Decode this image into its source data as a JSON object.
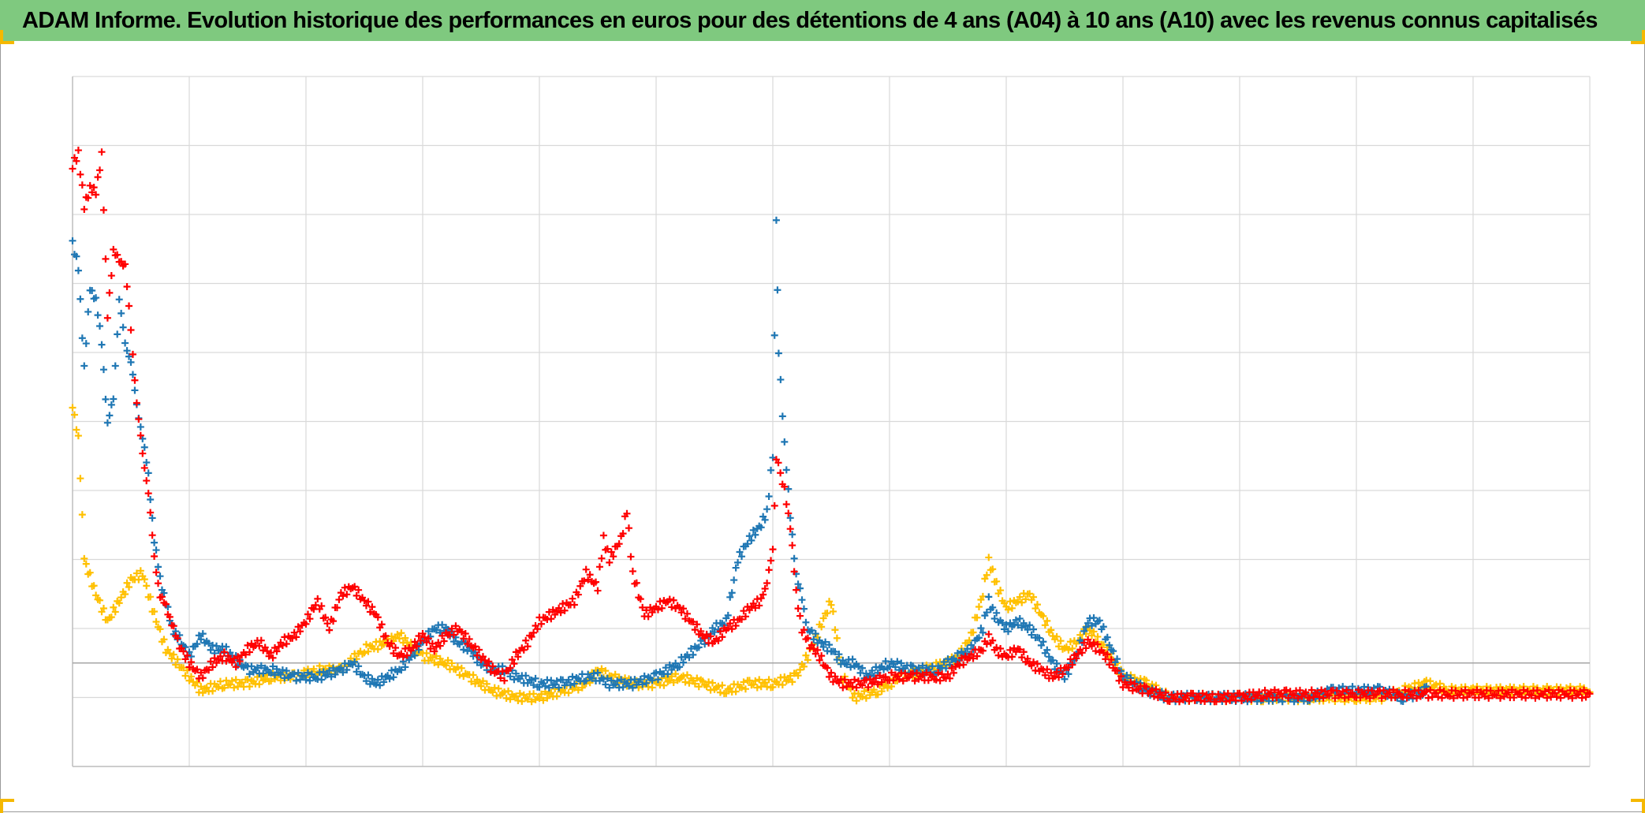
{
  "title": "ADAM Informe. Evolution historique des performances en euros pour des détentions de 4 ans (A04) à 10 ans (A10) avec les revenus connus capitalisés",
  "colors": {
    "title_background": "#7fc97f",
    "corner_marks": "#f5b800",
    "gridline": "#d9d9d9",
    "axis": "#bfbfbf"
  },
  "chart_data": {
    "type": "scatter",
    "marker": "plus",
    "grid": true,
    "legend": "none",
    "xlim": [
      0,
      13
    ],
    "ylim": [
      -1.5,
      8.5
    ],
    "x_gridlines": [
      0,
      1,
      2,
      3,
      4,
      5,
      6,
      7,
      8,
      9,
      10,
      11,
      12,
      13
    ],
    "y_gridlines": [
      -1.5,
      -0.5,
      0.5,
      1.5,
      2.5,
      3.5,
      4.5,
      5.5,
      6.5,
      7.5,
      8.5
    ],
    "baseline_y": 0,
    "series": [
      {
        "color": "#ffc000",
        "points": [
          [
            0,
            3.7
          ],
          [
            0.05,
            3.3
          ],
          [
            0.1,
            1.5
          ],
          [
            0.2,
            1.0
          ],
          [
            0.3,
            0.6
          ],
          [
            0.4,
            0.9
          ],
          [
            0.5,
            1.2
          ],
          [
            0.6,
            1.3
          ],
          [
            0.7,
            0.7
          ],
          [
            0.8,
            0.2
          ],
          [
            0.9,
            0.0
          ],
          [
            1.0,
            -0.2
          ],
          [
            1.1,
            -0.4
          ],
          [
            1.3,
            -0.3
          ],
          [
            1.5,
            -0.3
          ],
          [
            1.7,
            -0.2
          ],
          [
            1.9,
            -0.2
          ],
          [
            2.1,
            -0.1
          ],
          [
            2.3,
            -0.1
          ],
          [
            2.5,
            0.2
          ],
          [
            2.7,
            0.3
          ],
          [
            2.8,
            0.4
          ],
          [
            3.0,
            0.1
          ],
          [
            3.2,
            0.0
          ],
          [
            3.4,
            -0.2
          ],
          [
            3.6,
            -0.4
          ],
          [
            3.8,
            -0.5
          ],
          [
            4.0,
            -0.5
          ],
          [
            4.2,
            -0.4
          ],
          [
            4.4,
            -0.3
          ],
          [
            4.5,
            -0.1
          ],
          [
            4.6,
            -0.2
          ],
          [
            4.8,
            -0.3
          ],
          [
            5.0,
            -0.3
          ],
          [
            5.2,
            -0.2
          ],
          [
            5.4,
            -0.3
          ],
          [
            5.6,
            -0.4
          ],
          [
            5.8,
            -0.3
          ],
          [
            6.0,
            -0.3
          ],
          [
            6.2,
            -0.2
          ],
          [
            6.3,
            0.1
          ],
          [
            6.4,
            0.5
          ],
          [
            6.5,
            0.9
          ],
          [
            6.55,
            0.3
          ],
          [
            6.6,
            -0.2
          ],
          [
            6.7,
            -0.5
          ],
          [
            6.9,
            -0.4
          ],
          [
            7.1,
            -0.2
          ],
          [
            7.3,
            -0.1
          ],
          [
            7.5,
            0.0
          ],
          [
            7.6,
            0.1
          ],
          [
            7.7,
            0.4
          ],
          [
            7.8,
            1.0
          ],
          [
            7.85,
            1.5
          ],
          [
            7.9,
            1.2
          ],
          [
            8.0,
            0.8
          ],
          [
            8.1,
            0.9
          ],
          [
            8.2,
            1.0
          ],
          [
            8.3,
            0.7
          ],
          [
            8.4,
            0.4
          ],
          [
            8.5,
            0.2
          ],
          [
            8.6,
            0.3
          ],
          [
            8.7,
            0.5
          ],
          [
            8.8,
            0.3
          ],
          [
            8.9,
            0.1
          ],
          [
            9.0,
            -0.2
          ],
          [
            9.2,
            -0.3
          ],
          [
            9.4,
            -0.5
          ],
          [
            9.6,
            -0.5
          ],
          [
            9.8,
            -0.5
          ],
          [
            10.0,
            -0.5
          ],
          [
            10.2,
            -0.5
          ],
          [
            10.4,
            -0.5
          ],
          [
            10.6,
            -0.5
          ],
          [
            10.8,
            -0.5
          ],
          [
            11.0,
            -0.5
          ],
          [
            11.2,
            -0.5
          ],
          [
            11.4,
            -0.4
          ],
          [
            11.6,
            -0.3
          ],
          [
            11.8,
            -0.4
          ],
          [
            12.0,
            -0.4
          ],
          [
            12.3,
            -0.4
          ],
          [
            12.6,
            -0.4
          ],
          [
            13.0,
            -0.4
          ]
        ]
      },
      {
        "color": "#1f77b4",
        "points": [
          [
            0,
            6.1
          ],
          [
            0.05,
            5.7
          ],
          [
            0.1,
            4.3
          ],
          [
            0.15,
            5.4
          ],
          [
            0.2,
            5.3
          ],
          [
            0.25,
            4.6
          ],
          [
            0.3,
            3.5
          ],
          [
            0.35,
            3.8
          ],
          [
            0.4,
            5.3
          ],
          [
            0.45,
            4.6
          ],
          [
            0.5,
            4.4
          ],
          [
            0.55,
            3.7
          ],
          [
            0.6,
            3.3
          ],
          [
            0.65,
            2.7
          ],
          [
            0.7,
            1.8
          ],
          [
            0.75,
            1.2
          ],
          [
            0.8,
            0.9
          ],
          [
            0.85,
            0.5
          ],
          [
            0.9,
            0.4
          ],
          [
            1.0,
            0.1
          ],
          [
            1.1,
            0.4
          ],
          [
            1.2,
            0.2
          ],
          [
            1.3,
            0.2
          ],
          [
            1.5,
            -0.1
          ],
          [
            1.7,
            -0.1
          ],
          [
            1.9,
            -0.2
          ],
          [
            2.1,
            -0.2
          ],
          [
            2.3,
            -0.1
          ],
          [
            2.4,
            0.0
          ],
          [
            2.5,
            -0.2
          ],
          [
            2.6,
            -0.3
          ],
          [
            2.8,
            -0.1
          ],
          [
            3.0,
            0.3
          ],
          [
            3.1,
            0.5
          ],
          [
            3.2,
            0.5
          ],
          [
            3.3,
            0.3
          ],
          [
            3.4,
            0.2
          ],
          [
            3.5,
            0.0
          ],
          [
            3.6,
            -0.1
          ],
          [
            3.7,
            -0.1
          ],
          [
            3.8,
            -0.2
          ],
          [
            4.0,
            -0.3
          ],
          [
            4.2,
            -0.3
          ],
          [
            4.4,
            -0.2
          ],
          [
            4.5,
            -0.2
          ],
          [
            4.6,
            -0.3
          ],
          [
            4.7,
            -0.3
          ],
          [
            4.8,
            -0.3
          ],
          [
            5.0,
            -0.2
          ],
          [
            5.2,
            0.0
          ],
          [
            5.4,
            0.3
          ],
          [
            5.5,
            0.5
          ],
          [
            5.6,
            0.6
          ],
          [
            5.7,
            1.5
          ],
          [
            5.8,
            1.8
          ],
          [
            5.9,
            2.0
          ],
          [
            5.95,
            2.2
          ],
          [
            6.0,
            3.0
          ],
          [
            6.03,
            6.4
          ],
          [
            6.05,
            4.5
          ],
          [
            6.1,
            3.2
          ],
          [
            6.15,
            2.1
          ],
          [
            6.2,
            1.3
          ],
          [
            6.25,
            0.9
          ],
          [
            6.3,
            0.5
          ],
          [
            6.4,
            0.3
          ],
          [
            6.5,
            0.2
          ],
          [
            6.6,
            0.0
          ],
          [
            6.7,
            0.0
          ],
          [
            6.8,
            -0.2
          ],
          [
            7.0,
            0.0
          ],
          [
            7.2,
            -0.1
          ],
          [
            7.4,
            -0.1
          ],
          [
            7.5,
            0.0
          ],
          [
            7.6,
            0.1
          ],
          [
            7.7,
            0.2
          ],
          [
            7.8,
            0.5
          ],
          [
            7.85,
            0.9
          ],
          [
            7.9,
            0.7
          ],
          [
            8.0,
            0.5
          ],
          [
            8.1,
            0.6
          ],
          [
            8.2,
            0.5
          ],
          [
            8.3,
            0.3
          ],
          [
            8.4,
            0.0
          ],
          [
            8.5,
            -0.2
          ],
          [
            8.6,
            0.1
          ],
          [
            8.7,
            0.6
          ],
          [
            8.8,
            0.6
          ],
          [
            8.9,
            0.2
          ],
          [
            9.0,
            -0.2
          ],
          [
            9.2,
            -0.4
          ],
          [
            9.4,
            -0.5
          ],
          [
            9.6,
            -0.5
          ],
          [
            9.8,
            -0.5
          ],
          [
            10.0,
            -0.5
          ],
          [
            10.2,
            -0.5
          ],
          [
            10.4,
            -0.5
          ],
          [
            10.6,
            -0.5
          ],
          [
            10.8,
            -0.4
          ],
          [
            11.0,
            -0.4
          ],
          [
            11.2,
            -0.4
          ],
          [
            11.4,
            -0.5
          ],
          [
            11.6,
            -0.4
          ]
        ]
      },
      {
        "color": "#ff0000",
        "points": [
          [
            0,
            7.2
          ],
          [
            0.05,
            7.4
          ],
          [
            0.1,
            6.6
          ],
          [
            0.15,
            6.9
          ],
          [
            0.2,
            6.8
          ],
          [
            0.25,
            7.4
          ],
          [
            0.3,
            5.0
          ],
          [
            0.35,
            6.0
          ],
          [
            0.4,
            5.8
          ],
          [
            0.45,
            5.8
          ],
          [
            0.5,
            4.8
          ],
          [
            0.55,
            3.8
          ],
          [
            0.6,
            3.0
          ],
          [
            0.65,
            2.5
          ],
          [
            0.7,
            1.5
          ],
          [
            0.75,
            1.0
          ],
          [
            0.8,
            0.8
          ],
          [
            0.85,
            0.6
          ],
          [
            0.9,
            0.3
          ],
          [
            1.0,
            0.0
          ],
          [
            1.1,
            -0.2
          ],
          [
            1.2,
            0.0
          ],
          [
            1.3,
            0.1
          ],
          [
            1.4,
            0.0
          ],
          [
            1.5,
            0.2
          ],
          [
            1.6,
            0.3
          ],
          [
            1.7,
            0.1
          ],
          [
            1.8,
            0.3
          ],
          [
            1.9,
            0.4
          ],
          [
            2.0,
            0.6
          ],
          [
            2.1,
            0.9
          ],
          [
            2.2,
            0.5
          ],
          [
            2.3,
            1.0
          ],
          [
            2.4,
            1.1
          ],
          [
            2.5,
            0.9
          ],
          [
            2.6,
            0.7
          ],
          [
            2.7,
            0.3
          ],
          [
            2.8,
            0.1
          ],
          [
            2.9,
            0.2
          ],
          [
            3.0,
            0.4
          ],
          [
            3.1,
            0.2
          ],
          [
            3.2,
            0.4
          ],
          [
            3.3,
            0.5
          ],
          [
            3.4,
            0.3
          ],
          [
            3.5,
            0.1
          ],
          [
            3.6,
            -0.1
          ],
          [
            3.7,
            -0.2
          ],
          [
            3.8,
            0.1
          ],
          [
            3.9,
            0.3
          ],
          [
            4.0,
            0.6
          ],
          [
            4.1,
            0.7
          ],
          [
            4.2,
            0.8
          ],
          [
            4.3,
            0.9
          ],
          [
            4.4,
            1.3
          ],
          [
            4.5,
            1.1
          ],
          [
            4.55,
            1.8
          ],
          [
            4.6,
            1.5
          ],
          [
            4.7,
            1.8
          ],
          [
            4.75,
            2.2
          ],
          [
            4.8,
            1.3
          ],
          [
            4.9,
            0.7
          ],
          [
            5.0,
            0.8
          ],
          [
            5.1,
            0.9
          ],
          [
            5.2,
            0.8
          ],
          [
            5.3,
            0.6
          ],
          [
            5.4,
            0.4
          ],
          [
            5.5,
            0.3
          ],
          [
            5.6,
            0.5
          ],
          [
            5.7,
            0.6
          ],
          [
            5.8,
            0.8
          ],
          [
            5.9,
            0.9
          ],
          [
            5.95,
            1.2
          ],
          [
            6.0,
            1.6
          ],
          [
            6.03,
            3.0
          ],
          [
            6.1,
            2.5
          ],
          [
            6.15,
            2.0
          ],
          [
            6.2,
            1.0
          ],
          [
            6.25,
            0.5
          ],
          [
            6.3,
            0.3
          ],
          [
            6.4,
            0.1
          ],
          [
            6.5,
            -0.2
          ],
          [
            6.6,
            -0.3
          ],
          [
            6.8,
            -0.3
          ],
          [
            7.0,
            -0.2
          ],
          [
            7.2,
            -0.2
          ],
          [
            7.4,
            -0.2
          ],
          [
            7.5,
            -0.2
          ],
          [
            7.6,
            0.0
          ],
          [
            7.7,
            0.1
          ],
          [
            7.8,
            0.2
          ],
          [
            7.85,
            0.4
          ],
          [
            7.9,
            0.2
          ],
          [
            8.0,
            0.1
          ],
          [
            8.1,
            0.2
          ],
          [
            8.2,
            0.0
          ],
          [
            8.3,
            -0.1
          ],
          [
            8.4,
            -0.2
          ],
          [
            8.5,
            -0.1
          ],
          [
            8.6,
            0.1
          ],
          [
            8.7,
            0.3
          ],
          [
            8.8,
            0.2
          ],
          [
            8.9,
            0.0
          ],
          [
            9.0,
            -0.3
          ],
          [
            9.2,
            -0.4
          ],
          [
            9.4,
            -0.5
          ],
          [
            9.6,
            -0.5
          ],
          [
            9.8,
            -0.5
          ],
          [
            10.0,
            -0.5
          ],
          [
            10.2,
            -0.45
          ],
          [
            10.4,
            -0.45
          ],
          [
            10.6,
            -0.45
          ],
          [
            10.8,
            -0.45
          ],
          [
            11.0,
            -0.45
          ],
          [
            11.2,
            -0.45
          ],
          [
            11.4,
            -0.45
          ],
          [
            11.6,
            -0.45
          ],
          [
            11.8,
            -0.45
          ],
          [
            12.0,
            -0.45
          ],
          [
            12.2,
            -0.45
          ],
          [
            12.4,
            -0.45
          ],
          [
            12.6,
            -0.45
          ],
          [
            12.8,
            -0.45
          ],
          [
            13.0,
            -0.45
          ]
        ]
      }
    ]
  }
}
